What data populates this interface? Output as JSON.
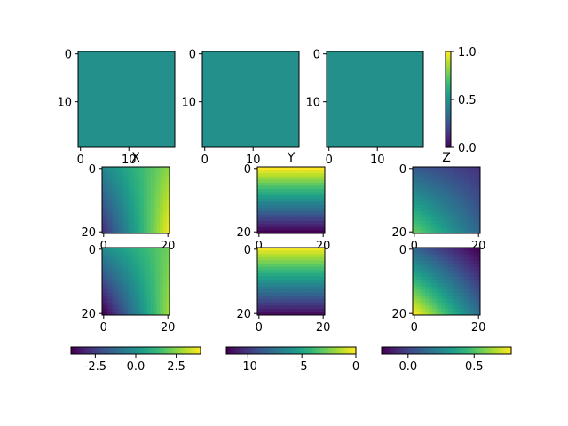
{
  "chart_data": [
    {
      "type": "heatmap",
      "panel": "top-1",
      "uniform_value": 0.5,
      "x_ticks": [
        0,
        10
      ],
      "y_ticks": [
        0,
        10
      ],
      "extent": [
        -0.5,
        19.5
      ]
    },
    {
      "type": "heatmap",
      "panel": "top-2",
      "uniform_value": 0.5,
      "x_ticks": [
        0,
        10
      ],
      "y_ticks": [
        0,
        10
      ],
      "extent": [
        -0.5,
        19.5
      ]
    },
    {
      "type": "heatmap",
      "panel": "top-3",
      "uniform_value": 0.5,
      "x_ticks": [
        0,
        10
      ],
      "y_ticks": [
        0,
        10
      ],
      "extent": [
        -0.5,
        19.5
      ]
    },
    {
      "type": "colorbar",
      "panel": "top-colorbar",
      "orientation": "vertical",
      "range": [
        0,
        1
      ],
      "ticks": [
        "0.0",
        "0.5",
        "1.0"
      ]
    },
    {
      "type": "heatmap",
      "panel": "X-top",
      "title": "X",
      "x_ticks": [
        0,
        20
      ],
      "y_ticks": [
        0,
        20
      ],
      "range": [
        -4,
        4
      ],
      "corners": {
        "top_left": -0.3,
        "top_right": 2.6,
        "bottom_left": -2.8,
        "bottom_right": 3.8
      }
    },
    {
      "type": "heatmap",
      "panel": "Y-top",
      "title": "Y",
      "x_ticks": [
        0,
        20
      ],
      "y_ticks": [
        0,
        20
      ],
      "range": [
        -12,
        0
      ],
      "corners": {
        "top_left": 0,
        "top_right": 0,
        "bottom_left": -12,
        "bottom_right": -12
      }
    },
    {
      "type": "heatmap",
      "panel": "Z-top",
      "title": "Z",
      "x_ticks": [
        0,
        20
      ],
      "y_ticks": [
        0,
        20
      ],
      "range": [
        -0.2,
        0.78
      ],
      "corners": {
        "top_left": 0.08,
        "top_right": -0.05,
        "bottom_left": 0.55,
        "bottom_right": 0.12
      }
    },
    {
      "type": "heatmap",
      "panel": "X-bottom",
      "x_ticks": [
        0,
        20
      ],
      "y_ticks": [
        0,
        20
      ],
      "range": [
        -4,
        4
      ],
      "corners": {
        "top_left": -0.2,
        "top_right": 2.2,
        "bottom_left": -4.0,
        "bottom_right": 2.8
      }
    },
    {
      "type": "heatmap",
      "panel": "Y-bottom",
      "x_ticks": [
        0,
        20
      ],
      "y_ticks": [
        0,
        20
      ],
      "range": [
        -12,
        0
      ],
      "corners": {
        "top_left": -0.3,
        "top_right": -0.3,
        "bottom_left": -11.5,
        "bottom_right": -11.5
      }
    },
    {
      "type": "heatmap",
      "panel": "Z-bottom",
      "x_ticks": [
        0,
        20
      ],
      "y_ticks": [
        0,
        20
      ],
      "range": [
        -0.2,
        0.78
      ],
      "corners": {
        "top_left": 0.12,
        "top_right": -0.2,
        "bottom_left": 0.78,
        "bottom_right": 0.15
      }
    },
    {
      "type": "colorbar",
      "panel": "X-colorbar",
      "orientation": "horizontal",
      "range": [
        -4,
        4
      ],
      "ticks": [
        "-2.5",
        "0.0",
        "2.5"
      ],
      "tick_values": [
        -2.5,
        0,
        2.5
      ]
    },
    {
      "type": "colorbar",
      "panel": "Y-colorbar",
      "orientation": "horizontal",
      "range": [
        -12,
        0
      ],
      "ticks": [
        "-10",
        "-5",
        "0"
      ],
      "tick_values": [
        -10,
        -5,
        0
      ]
    },
    {
      "type": "colorbar",
      "panel": "Z-colorbar",
      "orientation": "horizontal",
      "range": [
        -0.2,
        0.78
      ],
      "ticks": [
        "0.0",
        "0.5"
      ],
      "tick_values": [
        0,
        0.5
      ]
    }
  ],
  "colormap": "viridis"
}
